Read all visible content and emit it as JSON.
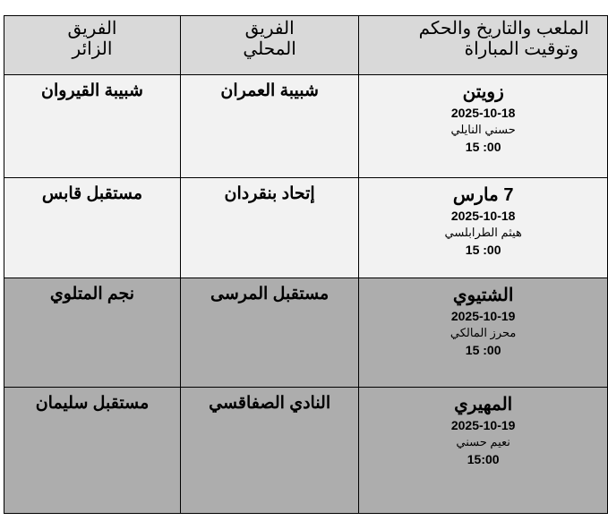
{
  "header": {
    "venue_col": [
      "الملعب والتاريخ والحكم",
      "وتوقيت المباراة"
    ],
    "home_col": [
      "الفريق",
      "المحلي"
    ],
    "away_col": [
      "الفريق",
      "الزائر"
    ]
  },
  "matches": [
    {
      "stadium": "زويتن",
      "date": "2025-10-18",
      "referee": "حسني النايلي",
      "time": "15 :00",
      "home": "شبيبة العمران",
      "away": "شبيبة القيروان"
    },
    {
      "stadium": "7 مارس",
      "date": "2025-10-18",
      "referee": "هيثم الطرابلسي",
      "time": "15 :00",
      "home": "إتحاد بنقردان",
      "away": "مستقبل قابس"
    },
    {
      "stadium": "الشتيوي",
      "date": "2025-10-19",
      "referee": "محرز المالكي",
      "time": "15 :00",
      "home": "مستقبل المرسى",
      "away": "نجم المتلوي"
    },
    {
      "stadium": "المهيري",
      "date": "2025-10-19",
      "referee": "نعيم حسني",
      "time": "15:00",
      "home": "النادي الصفاقسي",
      "away": "مستقبل سليمان"
    }
  ],
  "colors": {
    "header_bg": "#d9d9d9",
    "light_row_bg": "#f2f2f2",
    "dark_row_bg": "#adadad"
  }
}
